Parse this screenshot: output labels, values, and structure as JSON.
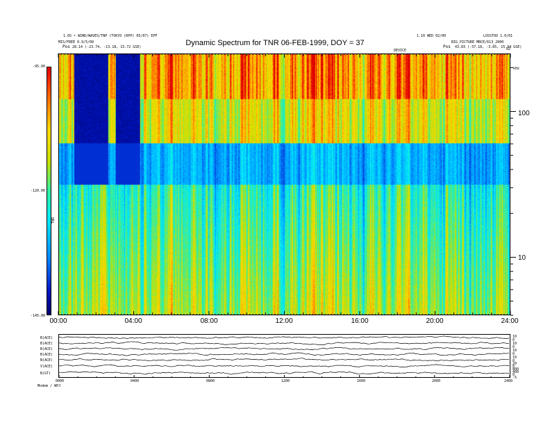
{
  "header": {
    "left_line1": "1.0S • WIND/WAVES/TNP (TOKYO (RPP) 05/07) EPF",
    "left_line2": "MIS/FREE 0.9/5/00",
    "left_line3_label": "Pos",
    "left_line3_value": "28.14 (-23.74, -13.18, 15.72 GSE)",
    "right_line1": "1.10 WED 02/00",
    "right_line1b": "LOSSTOO 1.0/01",
    "right_line2": "BIG_PICTURE MBCE/613_2000",
    "right_line3_label": "Pos",
    "right_line3_value": "43.83 (-37.18, -3.85, 15.94 GSE)",
    "mid_marker": "DEVICE",
    "corner_right": "02",
    "unit_right": "kHz"
  },
  "chart_data": {
    "type": "heatmap",
    "title": "Dynamic Spectrum for TNR 06-FEB-1999, DOY = 37",
    "xlabel": "",
    "ylabel": "",
    "x_ticks": [
      "00:00",
      "04:00",
      "08:00",
      "12:00",
      "16:00",
      "20:00",
      "24:00"
    ],
    "x_range_hours": [
      0,
      24
    ],
    "y_scale": "log",
    "y_ticks": [
      10,
      100
    ],
    "y_range_khz": [
      4,
      250
    ],
    "colorbar": {
      "label": "TNR",
      "ticks": [
        "-95.00",
        "-120.00",
        "-145.00"
      ],
      "range_db": [
        -145,
        -95
      ],
      "colors": [
        "#e00000",
        "#ff6a00",
        "#ffd800",
        "#c8e000",
        "#30f0a0",
        "#00e8ff",
        "#0090ff",
        "#0018c8",
        "#00006a"
      ]
    }
  },
  "lower_panel": {
    "channel_labels": [
      "B(ACE)",
      "B(ACE)",
      "B(ACE)",
      "B(ACE)",
      "N(ACE)",
      "V(ACE)",
      "B(GT)"
    ],
    "right_labels": [
      "10",
      "0",
      "10",
      "0",
      "10",
      "0",
      "10",
      "0",
      "20",
      "0",
      "800",
      "400",
      "0",
      "-5"
    ],
    "x_ticks": [
      "0000",
      "0400",
      "0800",
      "1200",
      "1600",
      "2000",
      "2400"
    ],
    "footer": "Modem / WPJ"
  }
}
